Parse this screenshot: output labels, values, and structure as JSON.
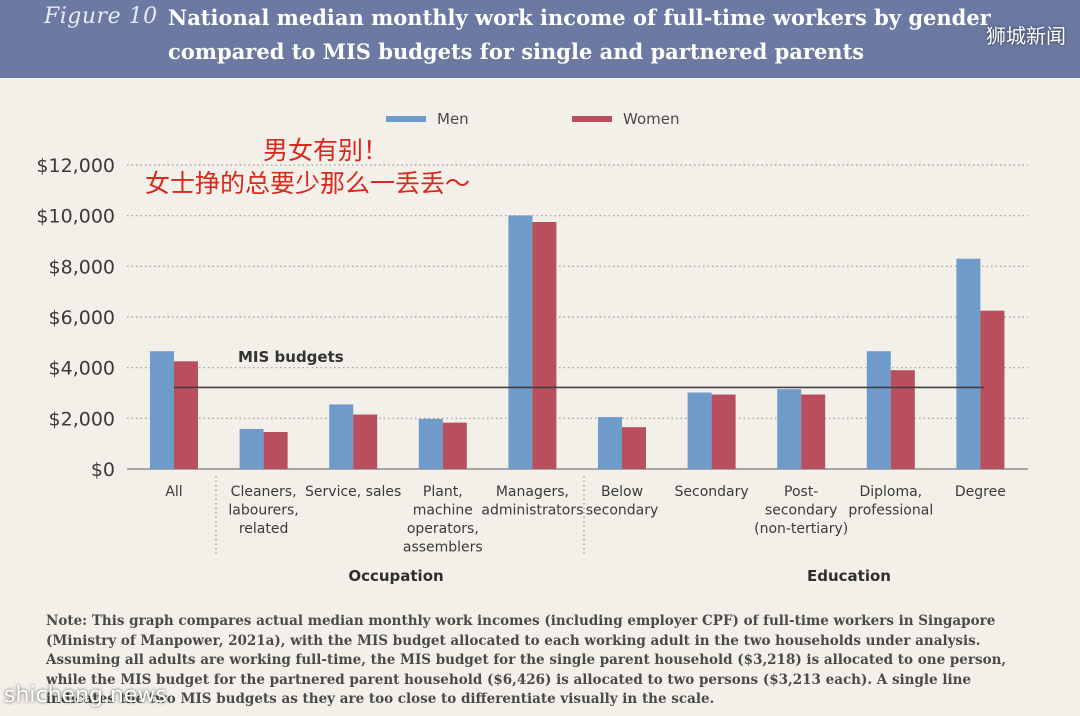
{
  "header": {
    "figure_label": "Figure 10",
    "title_line_1": "National median monthly work income of full-time workers by gender",
    "title_line_2": "compared to MIS budgets for single and partnered parents",
    "watermark": "狮城新闻"
  },
  "annotation": {
    "line_1": "男女有别！",
    "line_2": "女士挣的总要少那么一丢丢～"
  },
  "note": "Note: This graph compares actual median monthly work incomes (including employer CPF) of full-time workers in Singapore (Ministry of Manpower, 2021a), with the MIS budget allocated to each working adult in the two households under analysis. Assuming all adults are working full-time, the MIS budget for the single parent household ($3,218) is allocated to one person, while the MIS budget for the partnered parent household ($6,426) is allocated to two persons ($3,213 each). A single line indicates the two MIS budgets as they are too close to differentiate visually in the scale.",
  "watermark_bottom": "shicheng.news",
  "colors": {
    "men": "#6f9bcb",
    "women": "#b94e5c",
    "mis_line": "#404040",
    "background": "#f3f0ea",
    "header": "#6c7aa3"
  },
  "chart_data": {
    "type": "bar",
    "categories": [
      [
        "All"
      ],
      [
        "Cleaners,",
        "labourers,",
        "related"
      ],
      [
        "Service, sales"
      ],
      [
        "Plant,",
        "machine",
        "operators,",
        "assemblers"
      ],
      [
        "Managers,",
        "administrators"
      ],
      [
        "Below",
        "secondary"
      ],
      [
        "Secondary"
      ],
      [
        "Post-",
        "secondary",
        "(non-tertiary)"
      ],
      [
        "Diploma,",
        "professional"
      ],
      [
        "Degree"
      ]
    ],
    "series": [
      {
        "name": "Men",
        "values": [
          4650,
          1580,
          2550,
          1980,
          10010,
          2050,
          3020,
          3150,
          4650,
          8300
        ]
      },
      {
        "name": "Women",
        "values": [
          4250,
          1460,
          2150,
          1830,
          9750,
          1650,
          2940,
          2940,
          3900,
          6250
        ]
      }
    ],
    "groups": [
      {
        "label": "Occupation",
        "start": 1,
        "end": 4
      },
      {
        "label": "Education",
        "start": 5,
        "end": 9
      }
    ],
    "reference_line": {
      "label": "MIS budgets",
      "value": 3218
    },
    "yticks": [
      "$0",
      "$2,000",
      "$4,000",
      "$6,000",
      "$8,000",
      "$10,000",
      "$12,000"
    ],
    "ylim": [
      0,
      12000
    ],
    "grid": "dotted horizontal",
    "legend_position": "top"
  }
}
